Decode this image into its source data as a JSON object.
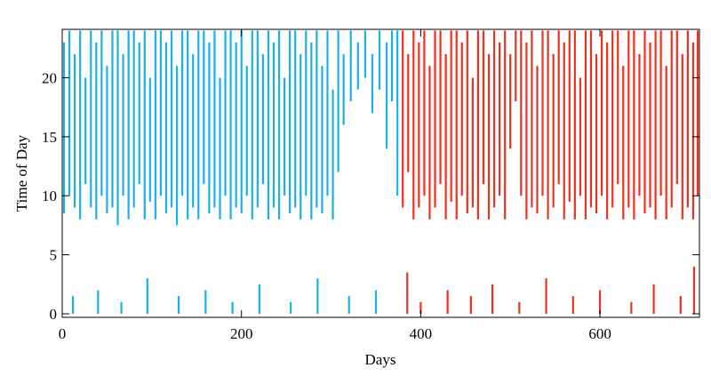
{
  "chart_data": {
    "type": "raster",
    "x_label": "Days",
    "y_label": "Time of Day",
    "xlim": [
      0,
      711
    ],
    "ylim": [
      -0.3,
      24.1
    ],
    "xticks": [
      0,
      200,
      400,
      600
    ],
    "yticks": [
      0,
      5,
      10,
      15,
      20
    ],
    "series": [
      {
        "color": "#1ab0e8",
        "x": [
          2,
          8,
          14,
          20,
          26,
          32,
          38,
          44,
          50,
          56,
          62,
          68,
          74,
          80,
          86,
          92,
          98,
          104,
          110,
          116,
          122,
          128,
          134,
          140,
          146,
          152,
          158,
          164,
          170,
          176,
          182,
          188,
          194,
          200,
          206,
          212,
          218,
          224,
          230,
          236,
          242,
          248,
          254,
          260,
          266,
          272,
          278,
          284,
          290,
          296,
          302,
          308,
          314,
          322,
          330,
          338,
          346,
          354,
          362,
          368,
          374,
          12,
          40,
          66,
          95,
          130,
          160,
          190,
          220,
          255,
          285,
          320,
          350
        ],
        "y0": [
          8.5,
          10,
          9,
          8,
          11,
          9,
          8,
          10,
          8.5,
          9,
          7.5,
          10,
          8,
          9,
          11,
          8,
          9.5,
          8,
          10,
          8.5,
          9,
          7.5,
          10,
          8,
          9,
          8,
          11,
          8.5,
          9,
          8,
          10,
          8,
          9,
          8.5,
          10,
          8,
          9,
          11,
          8,
          9,
          8,
          10,
          8.5,
          9,
          8,
          10,
          8,
          9,
          8.5,
          10,
          8,
          12,
          16,
          18,
          19,
          20,
          17,
          19,
          14,
          18,
          10,
          0,
          0,
          0,
          0,
          0,
          0,
          0,
          0,
          0,
          0,
          0,
          0
        ],
        "y1": [
          23,
          24,
          22,
          24,
          20,
          24,
          23,
          24,
          21,
          24,
          24,
          22,
          24,
          24,
          23,
          24,
          20,
          24,
          24,
          23,
          24,
          21,
          24,
          24,
          22,
          24,
          24,
          23,
          24,
          20,
          24,
          24,
          23,
          24,
          21,
          24,
          24,
          22,
          24,
          23,
          24,
          20,
          24,
          24,
          22,
          24,
          23,
          24,
          21,
          24,
          19,
          24,
          22,
          24,
          23,
          24,
          22,
          24,
          23,
          24,
          24,
          1.5,
          2,
          1,
          3,
          1.5,
          2,
          1,
          2.5,
          1,
          3,
          1.5,
          2
        ]
      },
      {
        "color": "#f0301e",
        "x": [
          380,
          386,
          392,
          398,
          404,
          410,
          416,
          422,
          428,
          434,
          440,
          446,
          452,
          458,
          464,
          470,
          476,
          482,
          488,
          494,
          500,
          506,
          512,
          518,
          524,
          530,
          536,
          542,
          548,
          554,
          560,
          566,
          572,
          578,
          584,
          590,
          596,
          602,
          608,
          614,
          620,
          626,
          632,
          638,
          644,
          650,
          656,
          662,
          668,
          674,
          680,
          686,
          692,
          698,
          704,
          709,
          385,
          400,
          430,
          456,
          480,
          510,
          540,
          570,
          600,
          635,
          660,
          690,
          705
        ],
        "y0": [
          9,
          12,
          8,
          9,
          10,
          8,
          9,
          11,
          8,
          9.5,
          8,
          10,
          8.5,
          9,
          8,
          11,
          8,
          9,
          10,
          8,
          14,
          18,
          10,
          8,
          9,
          8.5,
          10,
          8,
          9,
          11,
          8,
          9.5,
          8,
          10,
          8,
          9,
          8.5,
          10,
          8,
          9,
          11,
          8,
          9,
          8,
          10,
          8.5,
          9,
          8,
          10,
          8,
          9,
          11,
          8,
          9,
          8,
          10,
          0,
          0,
          0,
          0,
          0,
          0,
          0,
          0,
          0,
          0,
          0,
          0,
          0
        ],
        "y1": [
          24,
          22,
          24,
          23,
          24,
          21,
          24,
          24,
          22,
          24,
          24,
          23,
          24,
          20,
          24,
          24,
          22,
          24,
          23,
          24,
          22,
          24,
          24,
          23,
          24,
          21,
          24,
          24,
          22,
          24,
          23,
          24,
          24,
          20,
          24,
          24,
          22,
          24,
          23,
          24,
          24,
          21,
          24,
          24,
          22,
          24,
          23,
          24,
          24,
          21,
          24,
          24,
          22,
          24,
          23,
          24,
          3.5,
          1,
          2,
          1.5,
          2.5,
          1,
          3,
          1.5,
          2,
          1,
          2.5,
          1.5,
          4
        ]
      }
    ]
  }
}
